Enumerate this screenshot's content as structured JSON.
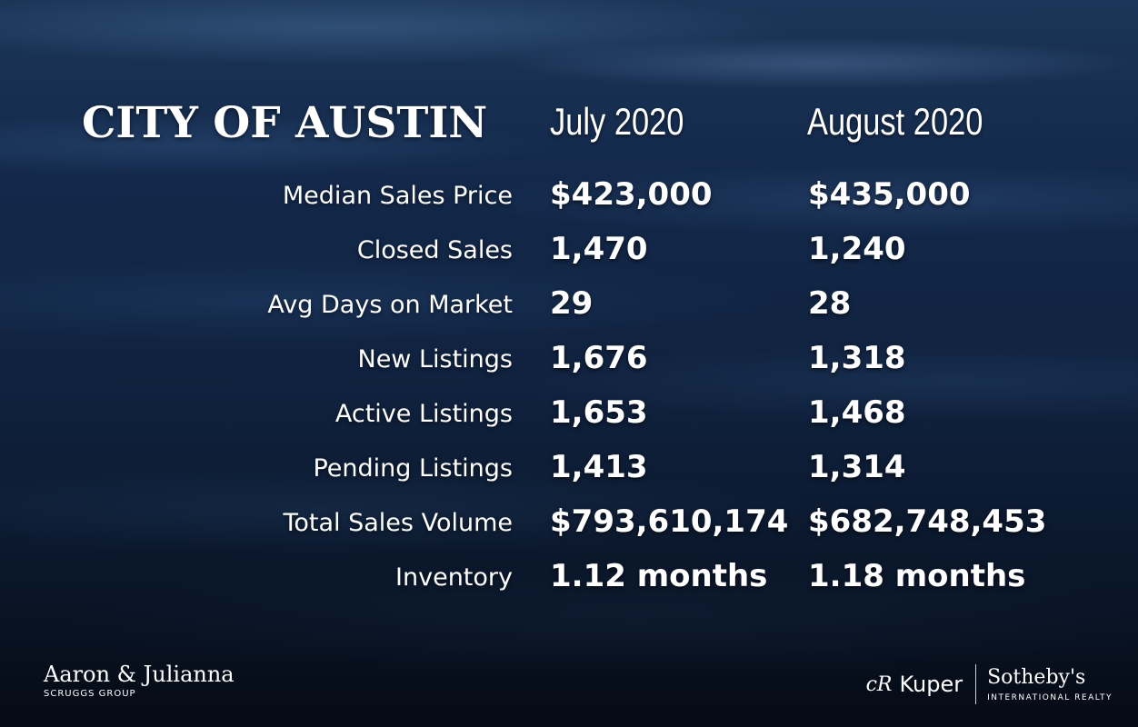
{
  "title": "CITY OF AUSTIN",
  "columns": [
    "July 2020",
    "August 2020"
  ],
  "rows": [
    {
      "label": "Median Sales Price",
      "july": "$423,000",
      "august": "$435,000"
    },
    {
      "label": "Closed Sales",
      "july": "1,470",
      "august": "1,240"
    },
    {
      "label": "Avg Days on Market",
      "july": "29",
      "august": "28"
    },
    {
      "label": "New Listings",
      "july": "1,676",
      "august": "1,318"
    },
    {
      "label": "Active Listings",
      "july": "1,653",
      "august": "1,468"
    },
    {
      "label": "Pending Listings",
      "july": "1,413",
      "august": "1,314"
    },
    {
      "label": "Total Sales Volume",
      "july": "$793,610,174",
      "august": "$682,748,453"
    },
    {
      "label": "Inventory",
      "july": "1.12 months",
      "august": "1.18 months"
    }
  ],
  "footer": {
    "left_name": "Aaron & Julianna",
    "left_sub": "SCRUGGS GROUP",
    "kuper_mark": "cR",
    "kuper": "Kuper",
    "sothebys": "Sotheby's",
    "sothebys_sub": "INTERNATIONAL REALTY"
  }
}
